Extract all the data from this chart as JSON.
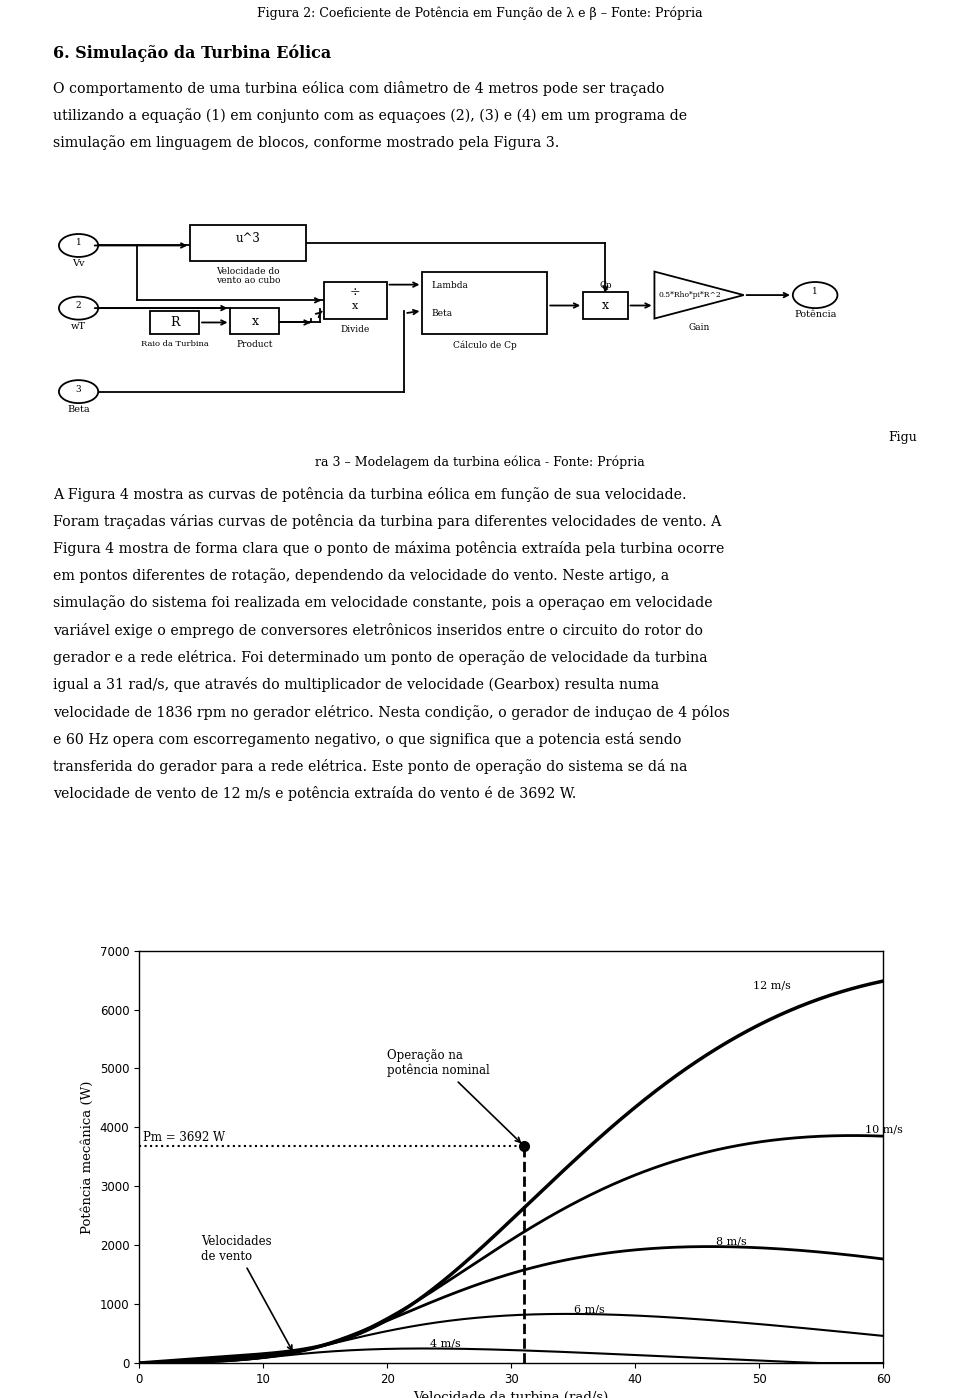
{
  "fig_title": "Figura 2: Coeficiente de Potência em Função de λ e β – Fonte: Própria",
  "section_title": "6. Simulação da Turbina Eólica",
  "para1_lines": [
    "O comportamento de uma turbina eólica com diâmetro de 4 metros pode ser traçado",
    "utilizando a equação (1) em conjunto com as equaçoes (2), (3) e (4) em um programa de",
    "simulação em linguagem de blocos, conforme mostrado pela Figura 3."
  ],
  "fig3_caption_right": "Figu",
  "fig3_caption_center": "ra 3 – Modelagem da turbina eólica - Fonte: Própria",
  "para2_lines": [
    "A Figura 4 mostra as curvas de potência da turbina eólica em função de sua velocidade.",
    "Foram traçadas várias curvas de potência da turbina para diferentes velocidades de vento. A",
    "Figura 4 mostra de forma clara que o ponto de máxima potência extraída pela turbina ocorre",
    "em pontos diferentes de rotação, dependendo da velocidade do vento. Neste artigo, a",
    "simulação do sistema foi realizada em velocidade constante, pois a operaçao em velocidade",
    "variável exige o emprego de conversores eletrônicos inseridos entre o circuito do rotor do",
    "gerador e a rede elétrica. Foi determinado um ponto de operação de velocidade da turbina",
    "igual a 31 rad/s, que através do multiplicador de velocidade (Gearbox) resulta numa",
    "velocidade de 1836 rpm no gerador elétrico. Nesta condição, o gerador de induçao de 4 pólos",
    "e 60 Hz opera com escorregamento negativo, o que significa que a potencia está sendo",
    "transferida do gerador para a rede elétrica. Este ponto de operação do sistema se dá na",
    "velocidade de vento de 12 m/s e potência extraída do vento é de 3692 W."
  ],
  "chart_xlabel": "Velocidade da turbina (rad/s)",
  "chart_ylabel": "Potência mecânica (W)",
  "chart_xlim": [
    0,
    60
  ],
  "chart_ylim": [
    0,
    7000
  ],
  "chart_xticks": [
    0,
    10,
    20,
    30,
    40,
    50,
    60
  ],
  "chart_yticks": [
    0,
    1000,
    2000,
    3000,
    4000,
    5000,
    6000,
    7000
  ],
  "wind_speeds": [
    4,
    6,
    8,
    10,
    12
  ],
  "wind_labels": [
    "4 m/s",
    "6 m/s",
    "8 m/s",
    "10 m/s",
    "12 m/s"
  ],
  "pm_line": 3692,
  "op_speed": 31,
  "annotation_op": "Operação na\npotência nominal",
  "annotation_vel": "Velocidades\nde vento",
  "annotation_pm": "Pm = 3692 W",
  "bg": "#ffffff",
  "fg": "#000000"
}
